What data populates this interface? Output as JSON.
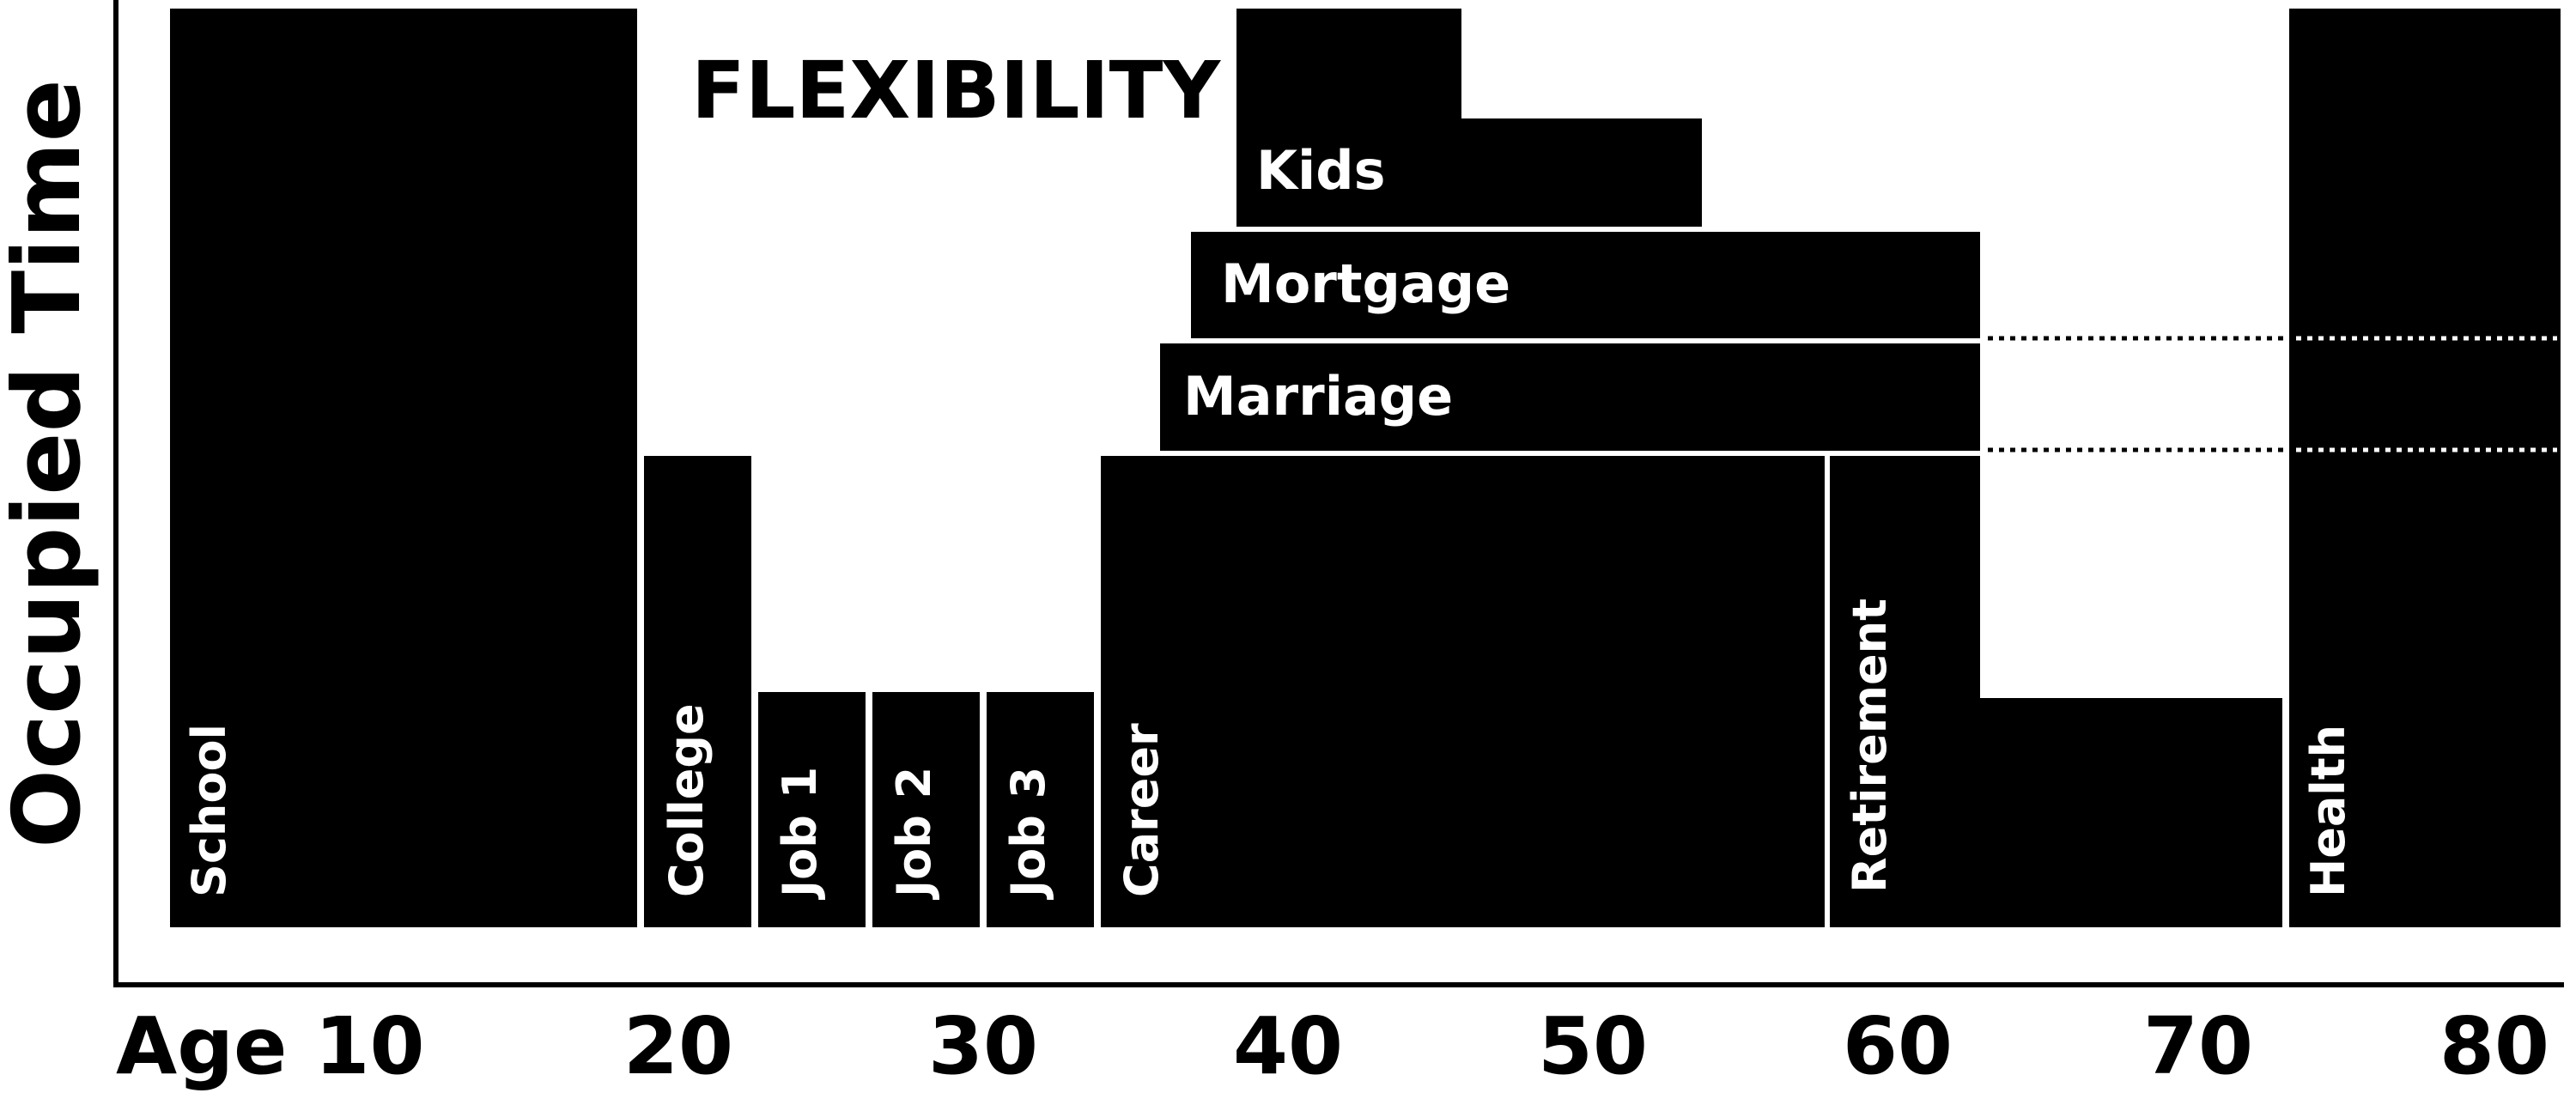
{
  "title": "FLEXIBILITY",
  "y_axis_label": "Occupied Time",
  "x_axis_labels": [
    "Age 10",
    "20",
    "30",
    "40",
    "50",
    "60",
    "70",
    "80"
  ],
  "blocks": [
    {
      "id": "school",
      "label": "School"
    },
    {
      "id": "college",
      "label": "College"
    },
    {
      "id": "job1",
      "label": "Job 1"
    },
    {
      "id": "job2",
      "label": "Job 2"
    },
    {
      "id": "job3",
      "label": "Job 3"
    },
    {
      "id": "career",
      "label": "Career"
    },
    {
      "id": "retirement",
      "label": "Retirement"
    },
    {
      "id": "health",
      "label": "Health"
    },
    {
      "id": "marriage",
      "label": "Marriage"
    },
    {
      "id": "mortgage",
      "label": "Mortgage"
    },
    {
      "id": "kids",
      "label": "Kids"
    }
  ],
  "colors": {
    "block": "#000000",
    "background": "#ffffff"
  }
}
